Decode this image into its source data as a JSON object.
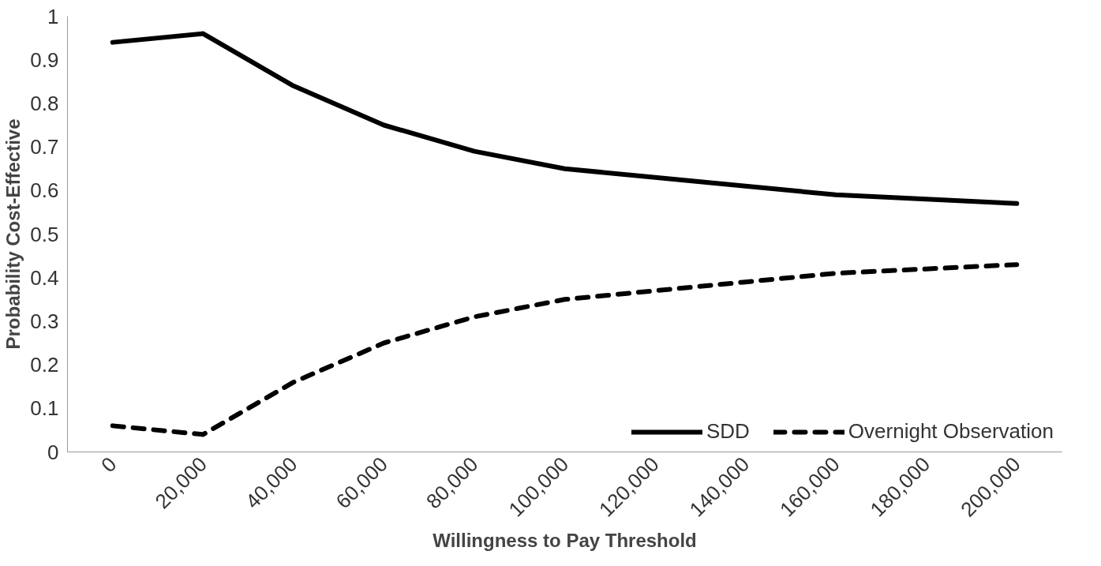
{
  "chart_data": {
    "type": "line",
    "xlabel": "Willingness to Pay Threshold",
    "ylabel": "Probability Cost-Effective",
    "categories": [
      "0",
      "20,000",
      "40,000",
      "60,000",
      "80,000",
      "100,000",
      "120,000",
      "140,000",
      "160,000",
      "180,000",
      "200,000"
    ],
    "series": [
      {
        "name": "SDD",
        "color": "#000000",
        "line_style": "solid",
        "values": [
          0.94,
          0.96,
          0.84,
          0.75,
          0.69,
          0.65,
          0.63,
          0.61,
          0.59,
          0.58,
          0.57
        ]
      },
      {
        "name": "Overnight Observation",
        "color": "#000000",
        "line_style": "dashed",
        "values": [
          0.06,
          0.04,
          0.16,
          0.25,
          0.31,
          0.35,
          0.37,
          0.39,
          0.41,
          0.42,
          0.43
        ]
      }
    ],
    "ylim": [
      0,
      1
    ],
    "yticks": [
      0,
      0.1,
      0.2,
      0.3,
      0.4,
      0.5,
      0.6,
      0.7,
      0.8,
      0.9,
      1
    ],
    "grid": false,
    "legend": "bottom right",
    "marker": "none"
  }
}
